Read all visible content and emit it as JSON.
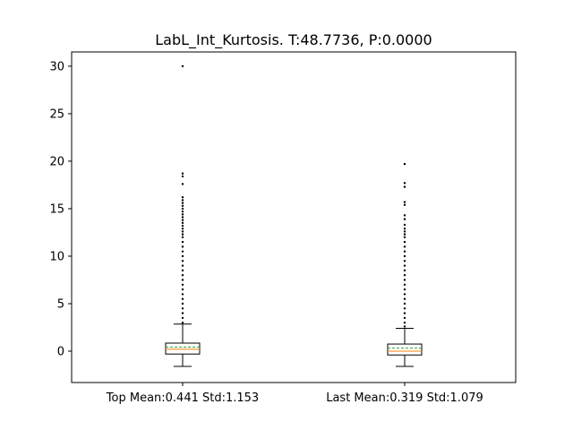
{
  "chart_data": {
    "type": "box",
    "title": "LabL_Int_Kurtosis. T:48.7736, P:0.0000",
    "xlabel": "",
    "ylabel": "",
    "categories": [
      "Top Mean:0.441 Std:1.153",
      "Last Mean:0.319 Std:1.079"
    ],
    "yticks": [
      0,
      5,
      10,
      15,
      20,
      25,
      30
    ],
    "ylim": [
      -3.3,
      31.5
    ],
    "grid": false,
    "boxes": [
      {
        "whisker_low": -1.6,
        "q1": -0.3,
        "median": 0.2,
        "mean": 0.441,
        "q3": 0.85,
        "whisker_high": 2.85,
        "outliers": [
          3.0,
          3.5,
          4.0,
          4.5,
          5.0,
          5.5,
          6.0,
          6.5,
          7.0,
          7.5,
          8.0,
          8.5,
          9.0,
          9.5,
          10.0,
          10.5,
          11.0,
          11.5,
          12.0,
          12.3,
          12.6,
          12.9,
          13.2,
          13.5,
          13.8,
          14.1,
          14.4,
          14.7,
          15.0,
          15.3,
          15.6,
          15.9,
          16.2,
          17.6,
          18.4,
          18.7,
          30.0
        ]
      },
      {
        "whisker_low": -1.6,
        "q1": -0.4,
        "median": 0.0,
        "mean": 0.319,
        "q3": 0.75,
        "whisker_high": 2.4,
        "outliers": [
          2.6,
          3.0,
          3.5,
          4.0,
          4.5,
          5.0,
          5.5,
          6.0,
          6.5,
          7.0,
          7.5,
          8.0,
          8.5,
          9.0,
          9.5,
          10.0,
          10.5,
          11.0,
          11.5,
          12.0,
          12.3,
          12.6,
          12.9,
          13.3,
          13.9,
          14.3,
          15.4,
          15.7,
          17.3,
          17.7,
          19.7
        ]
      }
    ],
    "colors": {
      "median": "#ff7f0e",
      "mean": "#2ca02c",
      "box": "#000000"
    }
  }
}
